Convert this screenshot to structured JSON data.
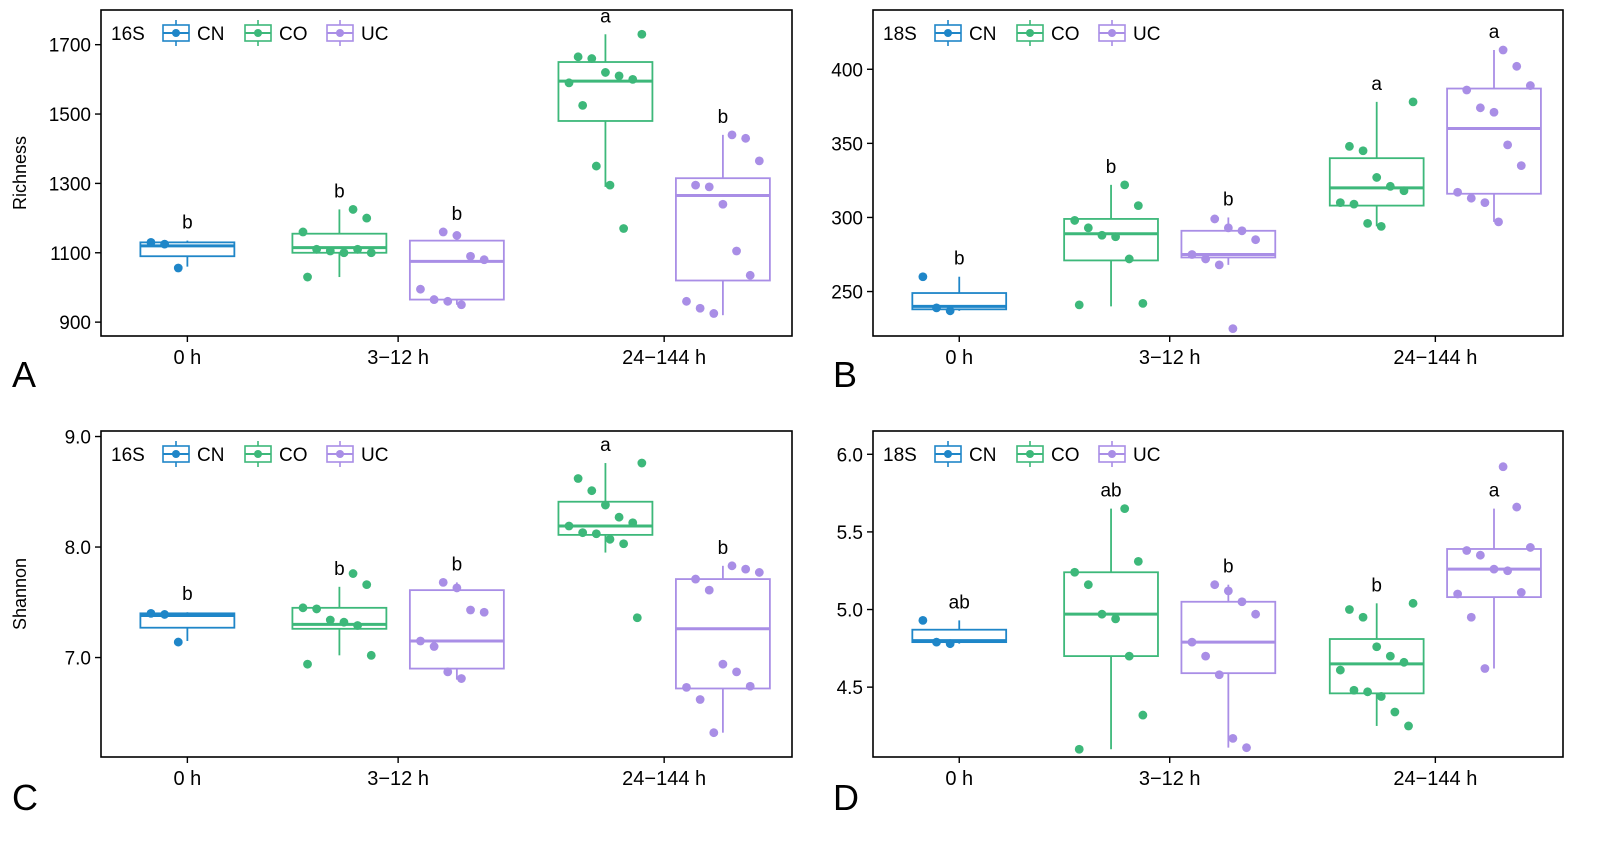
{
  "colors": {
    "CN": "#1f86c8",
    "CO": "#3db87a",
    "UC": "#a98ee6"
  },
  "chart_data": [
    {
      "panel": "A",
      "type": "box",
      "marker": "16S",
      "ylabel": "Richness",
      "ylim": [
        860,
        1800
      ],
      "yticks": [
        900,
        1100,
        1300,
        1500,
        1700
      ],
      "legend": [
        "CN",
        "CO",
        "UC"
      ],
      "legend_position": "top-left",
      "categories": [
        "0 h",
        "3−12 h",
        "24−144 h"
      ],
      "boxes": [
        {
          "category": "0 h",
          "group": "CN",
          "stats": [
            1060,
            1090,
            1120,
            1130,
            1135
          ],
          "points": [
            1130,
            1125,
            1056
          ],
          "letter": "b"
        },
        {
          "category": "3−12 h",
          "group": "CO",
          "stats": [
            1030,
            1100,
            1115,
            1155,
            1225
          ],
          "points": [
            1225,
            1200,
            1160,
            1110,
            1105,
            1100,
            1110,
            1100,
            1030
          ],
          "letter": "b"
        },
        {
          "category": "3−12 h",
          "group": "UC",
          "stats": [
            950,
            965,
            1075,
            1135,
            1160
          ],
          "points": [
            1160,
            1150,
            1090,
            1080,
            995,
            965,
            960,
            950
          ],
          "letter": "b"
        },
        {
          "category": "24−144 h",
          "group": "CO",
          "stats": [
            1290,
            1480,
            1595,
            1650,
            1730
          ],
          "points": [
            1730,
            1665,
            1660,
            1620,
            1610,
            1600,
            1590,
            1525,
            1350,
            1295,
            1170
          ],
          "letter": "a"
        },
        {
          "category": "24−144 h",
          "group": "UC",
          "stats": [
            920,
            1020,
            1265,
            1315,
            1440
          ],
          "points": [
            1440,
            1430,
            1365,
            1295,
            1290,
            1240,
            1105,
            1035,
            960,
            940,
            925
          ],
          "letter": "b"
        }
      ]
    },
    {
      "panel": "B",
      "type": "box",
      "marker": "18S",
      "ylabel": "",
      "ylim": [
        220,
        440
      ],
      "yticks": [
        250,
        300,
        350,
        400
      ],
      "legend": [
        "CN",
        "CO",
        "UC"
      ],
      "legend_position": "top-left",
      "categories": [
        "0 h",
        "3−12 h",
        "24−144 h"
      ],
      "boxes": [
        {
          "category": "0 h",
          "group": "CN",
          "stats": [
            237,
            238,
            240,
            249,
            260
          ],
          "points": [
            260,
            239,
            237
          ],
          "letter": "b"
        },
        {
          "category": "3−12 h",
          "group": "CO",
          "stats": [
            240,
            271,
            289,
            299,
            322
          ],
          "points": [
            322,
            308,
            298,
            293,
            288,
            287,
            272,
            242,
            241
          ],
          "letter": "b"
        },
        {
          "category": "3−12 h",
          "group": "UC",
          "stats": [
            268,
            273,
            275,
            291,
            300
          ],
          "points": [
            299,
            293,
            291,
            285,
            275,
            272,
            268,
            225
          ],
          "letter": "b"
        },
        {
          "category": "24−144 h",
          "group": "CO",
          "stats": [
            294,
            308,
            320,
            340,
            378
          ],
          "points": [
            378,
            348,
            345,
            327,
            321,
            318,
            310,
            309,
            296,
            294
          ],
          "letter": "a"
        },
        {
          "category": "24−144 h",
          "group": "UC",
          "stats": [
            297,
            316,
            360,
            387,
            413
          ],
          "points": [
            413,
            402,
            389,
            386,
            374,
            371,
            349,
            335,
            317,
            313,
            310,
            297
          ],
          "letter": "a"
        }
      ]
    },
    {
      "panel": "C",
      "type": "box",
      "marker": "16S",
      "ylabel": "Shannon",
      "ylim": [
        6.1,
        9.05
      ],
      "yticks": [
        7.0,
        8.0,
        9.0
      ],
      "tick_format": "0.0",
      "legend": [
        "CN",
        "CO",
        "UC"
      ],
      "legend_position": "top-left",
      "categories": [
        "0 h",
        "3−12 h",
        "24−144 h"
      ],
      "boxes": [
        {
          "category": "0 h",
          "group": "CN",
          "stats": [
            7.15,
            7.27,
            7.38,
            7.4,
            7.41
          ],
          "points": [
            7.4,
            7.39,
            7.14
          ],
          "letter": "b"
        },
        {
          "category": "3−12 h",
          "group": "CO",
          "stats": [
            7.02,
            7.26,
            7.3,
            7.45,
            7.64
          ],
          "points": [
            7.76,
            7.66,
            7.45,
            7.44,
            7.34,
            7.32,
            7.29,
            7.02,
            6.94
          ],
          "letter": "b"
        },
        {
          "category": "3−12 h",
          "group": "UC",
          "stats": [
            6.8,
            6.9,
            7.15,
            7.61,
            7.68
          ],
          "points": [
            7.68,
            7.63,
            7.43,
            7.41,
            7.15,
            7.1,
            6.87,
            6.81
          ],
          "letter": "b"
        },
        {
          "category": "24−144 h",
          "group": "CO",
          "stats": [
            7.95,
            8.11,
            8.19,
            8.41,
            8.76
          ],
          "points": [
            8.76,
            8.62,
            8.51,
            8.38,
            8.27,
            8.22,
            8.19,
            8.13,
            8.12,
            8.07,
            8.03,
            7.36
          ],
          "letter": "a"
        },
        {
          "category": "24−144 h",
          "group": "UC",
          "stats": [
            6.32,
            6.72,
            7.26,
            7.71,
            7.83
          ],
          "points": [
            7.83,
            7.8,
            7.77,
            7.71,
            7.61,
            6.94,
            6.87,
            6.74,
            6.73,
            6.62,
            6.32
          ],
          "letter": "b"
        }
      ]
    },
    {
      "panel": "D",
      "type": "box",
      "marker": "18S",
      "ylabel": "",
      "ylim": [
        4.05,
        6.15
      ],
      "yticks": [
        4.5,
        5.0,
        5.5,
        6.0
      ],
      "tick_format": "0.0",
      "legend": [
        "CN",
        "CO",
        "UC"
      ],
      "legend_position": "top-left",
      "categories": [
        "0 h",
        "3−12 h",
        "24−144 h"
      ],
      "boxes": [
        {
          "category": "0 h",
          "group": "CN",
          "stats": [
            4.78,
            4.79,
            4.8,
            4.87,
            4.93
          ],
          "points": [
            4.93,
            4.79,
            4.78
          ],
          "letter": "ab"
        },
        {
          "category": "3−12 h",
          "group": "CO",
          "stats": [
            4.1,
            4.7,
            4.97,
            5.24,
            5.65
          ],
          "points": [
            5.65,
            5.31,
            5.24,
            5.16,
            4.97,
            4.94,
            4.7,
            4.32,
            4.1
          ],
          "letter": "ab"
        },
        {
          "category": "3−12 h",
          "group": "UC",
          "stats": [
            4.11,
            4.59,
            4.79,
            5.05,
            5.16
          ],
          "points": [
            5.16,
            5.12,
            5.05,
            4.97,
            4.79,
            4.7,
            4.58,
            4.17,
            4.11
          ],
          "letter": "b"
        },
        {
          "category": "24−144 h",
          "group": "CO",
          "stats": [
            4.25,
            4.46,
            4.65,
            4.81,
            5.04
          ],
          "points": [
            5.04,
            5.0,
            4.95,
            4.76,
            4.7,
            4.66,
            4.61,
            4.48,
            4.47,
            4.44,
            4.34,
            4.25
          ],
          "letter": "b"
        },
        {
          "category": "24−144 h",
          "group": "UC",
          "stats": [
            4.62,
            5.08,
            5.26,
            5.39,
            5.65
          ],
          "points": [
            5.92,
            5.66,
            5.4,
            5.38,
            5.35,
            5.26,
            5.25,
            5.11,
            5.1,
            4.95,
            4.62
          ],
          "letter": "a"
        }
      ]
    }
  ]
}
